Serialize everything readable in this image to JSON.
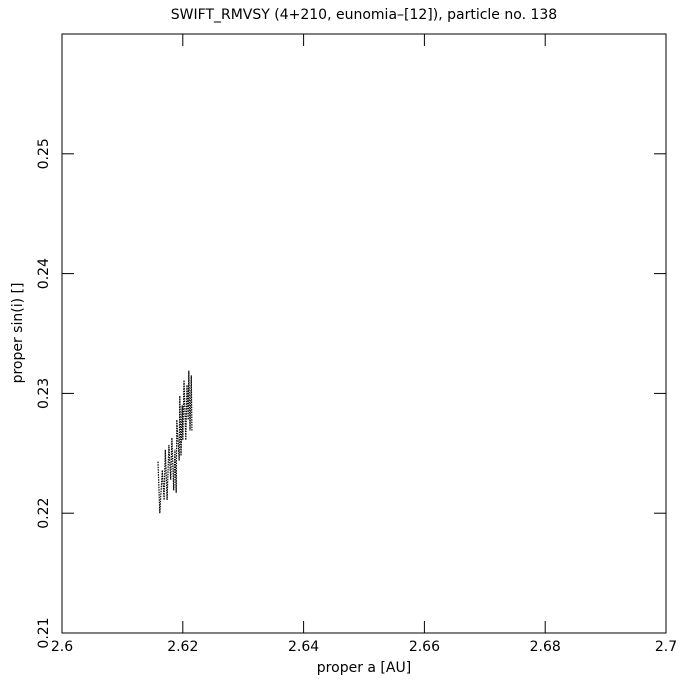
{
  "chart_data": {
    "type": "line",
    "title": "SWIFT_RMVSY (4+210, eunomia–[12]), particle no. 138",
    "x_label": "proper a [AU]",
    "y_label": "proper sin(i) []",
    "series": [
      {
        "color": "#000000",
        "x": [
          2.6159,
          2.6162,
          2.6166,
          2.6169,
          2.6171,
          2.6174,
          2.6177,
          2.618,
          2.6182,
          2.6185,
          2.6187,
          2.6189,
          2.619,
          2.6194,
          2.6195,
          2.6197,
          2.6199,
          2.62,
          2.6202,
          2.6205,
          2.6207,
          2.6209,
          2.621,
          2.6212,
          2.6214,
          2.6215
        ],
        "values": [
          0.2243,
          0.22,
          0.2236,
          0.2211,
          0.2253,
          0.2211,
          0.2257,
          0.2228,
          0.2263,
          0.2219,
          0.2253,
          0.2217,
          0.2278,
          0.2244,
          0.2298,
          0.2248,
          0.229,
          0.2261,
          0.2311,
          0.2261,
          0.2307,
          0.2278,
          0.2319,
          0.2269,
          0.2315,
          0.2269
        ]
      }
    ],
    "xlim": [
      2.6,
      2.7
    ],
    "xticks": [
      2.6,
      2.62,
      2.64,
      2.66,
      2.68,
      2.7
    ],
    "ylim": [
      0.21,
      0.26
    ],
    "yticks": [
      0.21,
      0.22,
      0.23,
      0.24,
      0.25
    ]
  }
}
